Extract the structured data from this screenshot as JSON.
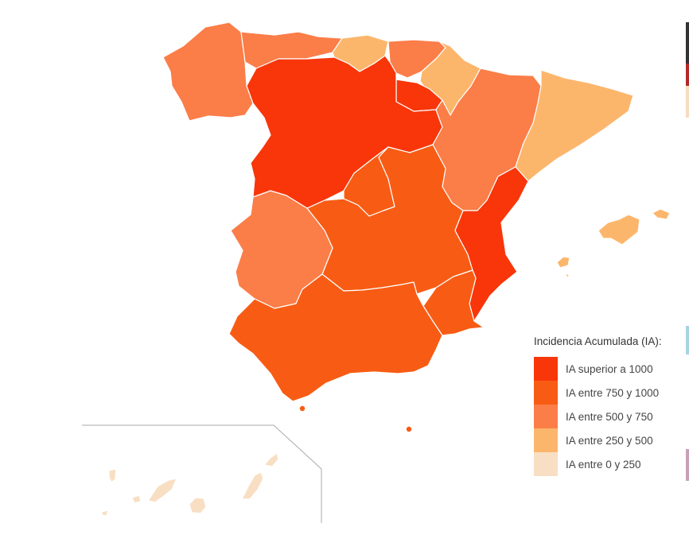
{
  "legend": {
    "title": "Incidencia Acumulada (IA):",
    "items": [
      {
        "label": "IA superior a 1000",
        "color": "#f8360a"
      },
      {
        "label": "IA entre 750 y 1000",
        "color": "#f85c14"
      },
      {
        "label": "IA entre 500 y 750",
        "color": "#fb7d48"
      },
      {
        "label": "IA entre 250 y 500",
        "color": "#fcb66c"
      },
      {
        "label": "IA entre 0 y 250",
        "color": "#f8dfc4"
      }
    ]
  },
  "regions": [
    {
      "name": "Galicia",
      "category": 2
    },
    {
      "name": "Asturias",
      "category": 2
    },
    {
      "name": "Cantabria",
      "category": 3
    },
    {
      "name": "País Vasco",
      "category": 2
    },
    {
      "name": "Navarra",
      "category": 3
    },
    {
      "name": "La Rioja",
      "category": 0
    },
    {
      "name": "Castilla y León",
      "category": 0
    },
    {
      "name": "Aragón",
      "category": 2
    },
    {
      "name": "Cataluña",
      "category": 3
    },
    {
      "name": "Comunidad de Madrid",
      "category": 1
    },
    {
      "name": "Castilla-La Mancha",
      "category": 1
    },
    {
      "name": "Extremadura",
      "category": 2
    },
    {
      "name": "Comunitat Valenciana",
      "category": 0
    },
    {
      "name": "Región de Murcia",
      "category": 1
    },
    {
      "name": "Andalucía",
      "category": 1
    },
    {
      "name": "Illes Balears",
      "category": 3
    },
    {
      "name": "Ceuta",
      "category": 1
    },
    {
      "name": "Melilla",
      "category": 1
    },
    {
      "name": "Canarias",
      "category": 4
    }
  ]
}
